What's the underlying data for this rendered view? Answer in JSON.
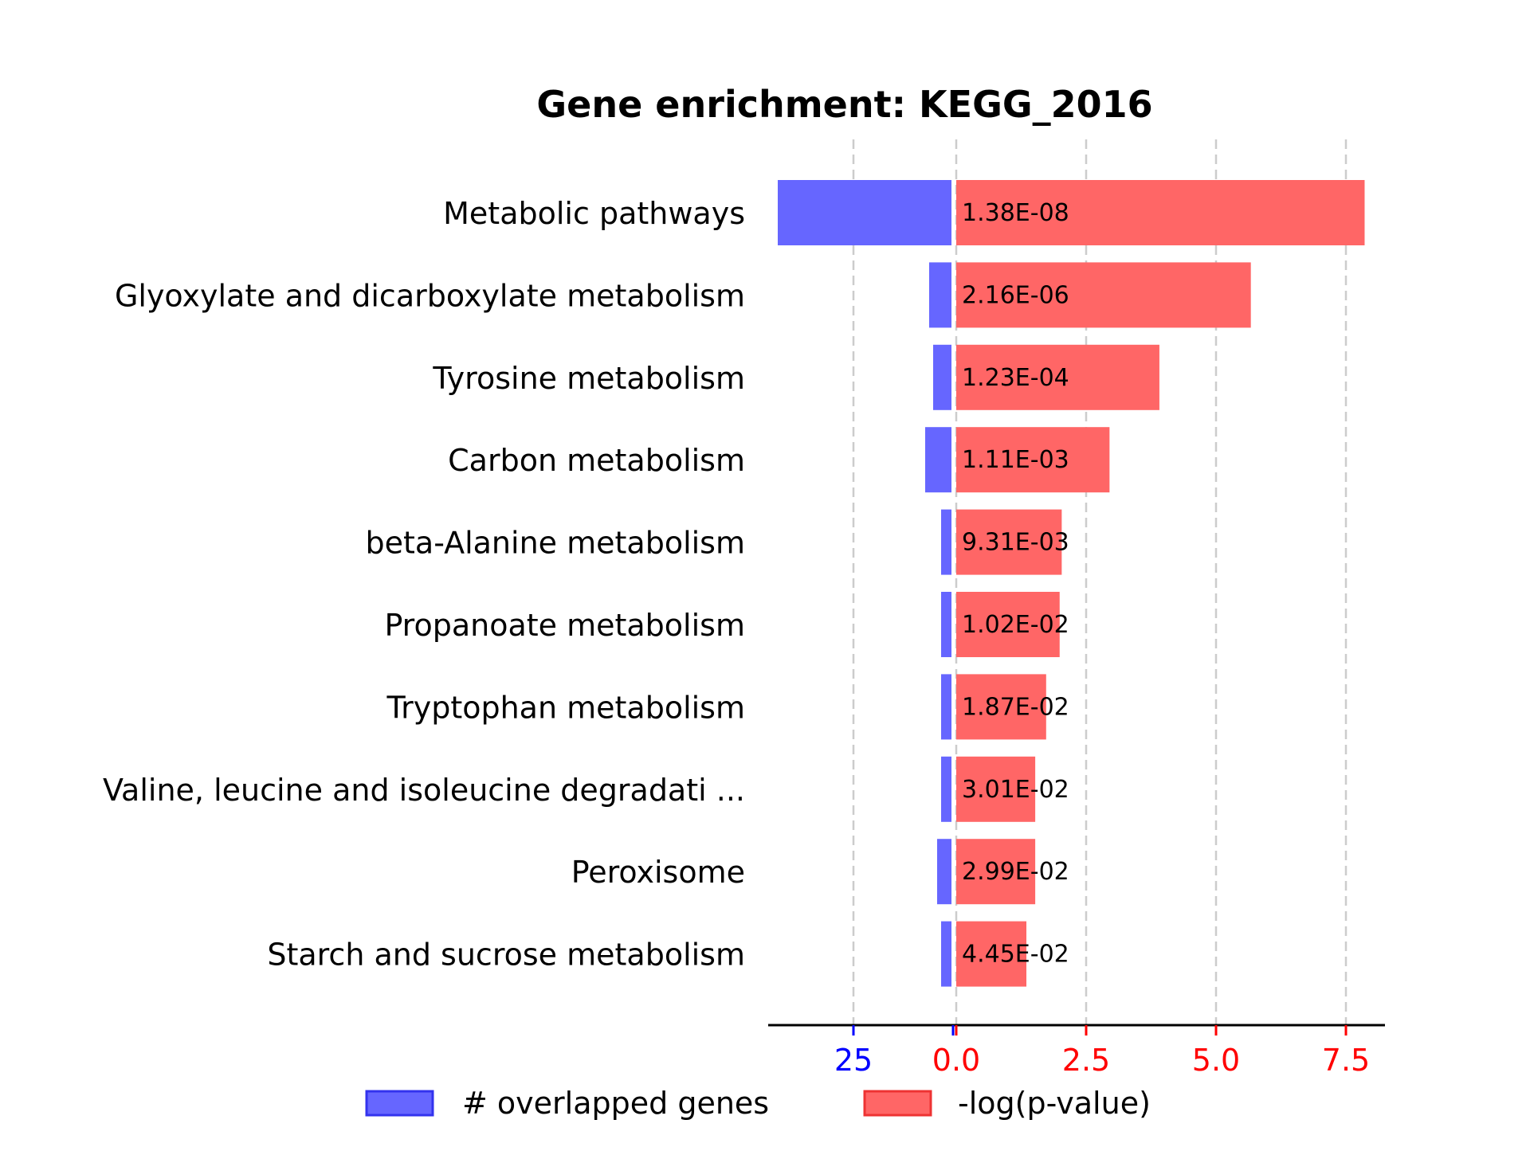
{
  "chart_data": {
    "type": "bar",
    "title": "Gene enrichment: KEGG_2016",
    "categories": [
      "Metabolic pathways",
      "Glyoxylate and dicarboxylate metabolism",
      "Tyrosine metabolism",
      "Carbon metabolism",
      "beta-Alanine metabolism",
      "Propanoate metabolism",
      "Tryptophan metabolism",
      "Valine, leucine and isoleucine degradati ...",
      "Peroxisome",
      "Starch and sucrose metabolism"
    ],
    "series": [
      {
        "name": "# overlapped genes",
        "color": "#6666ff",
        "direction": "left",
        "values": [
          44,
          6,
          5,
          7,
          3,
          3,
          3,
          3,
          4,
          3
        ]
      },
      {
        "name": "-log(p-value)",
        "color": "#ff6666",
        "direction": "right",
        "values": [
          7.86,
          5.67,
          3.91,
          2.95,
          2.03,
          1.99,
          1.73,
          1.52,
          1.52,
          1.35
        ]
      }
    ],
    "data_labels": [
      "1.38E-08",
      "2.16E-06",
      "1.23E-04",
      "1.11E-03",
      "9.31E-03",
      "1.02E-02",
      "1.87E-02",
      "3.01E-02",
      "2.99E-02",
      "4.45E-02"
    ],
    "left_axis": {
      "ticks": [
        "25",
        "0"
      ],
      "tick_values": [
        25,
        0
      ],
      "color": "#0000ff"
    },
    "right_axis": {
      "ticks": [
        "0.0",
        "2.5",
        "5.0",
        "7.5"
      ],
      "tick_values": [
        0,
        2.5,
        5.0,
        7.5
      ],
      "color": "#ff0000"
    },
    "right_xlim": [
      0,
      8.2
    ],
    "grid": "vertical dashed",
    "legend": {
      "placement": "bottom-center",
      "items": [
        {
          "label": "# overlapped genes",
          "color": "#6666ff"
        },
        {
          "label": "-log(p-value)",
          "color": "#ff6666"
        }
      ]
    }
  }
}
